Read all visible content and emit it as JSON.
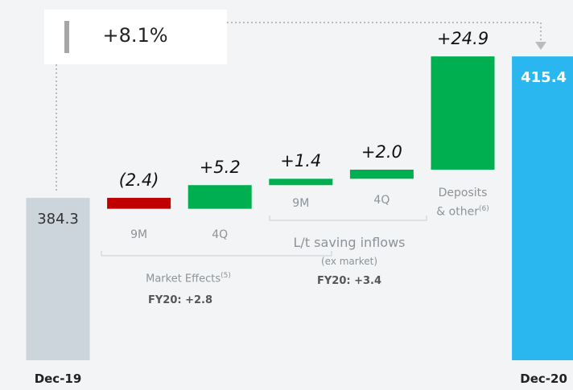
{
  "chart_data": {
    "type": "waterfall",
    "categories": [
      "Dec-19",
      "9M",
      "4Q",
      "9M",
      "4Q",
      "Deposits & other",
      "Dec-20"
    ],
    "category_notes": {
      "5": "(6)"
    },
    "measure": [
      "total",
      "relative",
      "relative",
      "relative",
      "relative",
      "relative",
      "total"
    ],
    "values": [
      384.3,
      -2.4,
      5.2,
      1.4,
      2.0,
      24.9,
      415.4
    ],
    "value_labels": [
      "384.3",
      "(2.4)",
      "+5.2",
      "+1.4",
      "+2.0",
      "+24.9",
      "415.4"
    ],
    "colors": [
      "#cdd5dc",
      "#c00000",
      "#00b050",
      "#00b050",
      "#00b050",
      "#00b050",
      "#2ab7ef"
    ],
    "ylim": [
      348.6,
      427.8
    ],
    "summary": "+8.1%",
    "groups": [
      {
        "label": "Market Effects",
        "note": "(5)",
        "total": "FY20: +2.8"
      },
      {
        "label": "L/t saving inflows",
        "sublabel": "(ex market)",
        "total": "FY20: +3.4"
      }
    ]
  }
}
